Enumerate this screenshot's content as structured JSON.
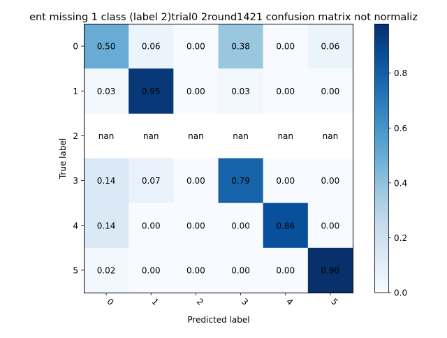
{
  "chart_data": {
    "type": "heatmap",
    "title": "ent missing 1 class (label 2)trial0 2round1421 confusion matrix not normaliz",
    "xlabel": "Predicted label",
    "ylabel": "True label",
    "x_categories": [
      "0",
      "1",
      "2",
      "3",
      "4",
      "5"
    ],
    "y_categories": [
      "0",
      "1",
      "2",
      "3",
      "4",
      "5"
    ],
    "values": [
      [
        0.5,
        0.06,
        0.0,
        0.38,
        0.0,
        0.06
      ],
      [
        0.03,
        0.95,
        0.0,
        0.03,
        0.0,
        0.0
      ],
      [
        null,
        null,
        null,
        null,
        null,
        null
      ],
      [
        0.14,
        0.07,
        0.0,
        0.79,
        0.0,
        0.0
      ],
      [
        0.14,
        0.0,
        0.0,
        0.0,
        0.86,
        0.0
      ],
      [
        0.02,
        0.0,
        0.0,
        0.0,
        0.0,
        0.98
      ]
    ],
    "cell_labels": [
      [
        "0.50",
        "0.06",
        "0.00",
        "0.38",
        "0.00",
        "0.06"
      ],
      [
        "0.03",
        "0.95",
        "0.00",
        "0.03",
        "0.00",
        "0.00"
      ],
      [
        "nan",
        "nan",
        "nan",
        "nan",
        "nan",
        "nan"
      ],
      [
        "0.14",
        "0.07",
        "0.00",
        "0.79",
        "0.00",
        "0.00"
      ],
      [
        "0.14",
        "0.00",
        "0.00",
        "0.00",
        "0.86",
        "0.00"
      ],
      [
        "0.02",
        "0.00",
        "0.00",
        "0.00",
        "0.00",
        "0.98"
      ]
    ],
    "colormap": "Blues",
    "colorbar": {
      "range": [
        0.0,
        0.98
      ],
      "ticks": [
        0.0,
        0.2,
        0.4,
        0.6,
        0.8
      ],
      "tick_labels": [
        "0.0",
        "0.2",
        "0.4",
        "0.6",
        "0.8"
      ]
    },
    "x_tick_rotation": "45 degrees",
    "grid": false
  }
}
